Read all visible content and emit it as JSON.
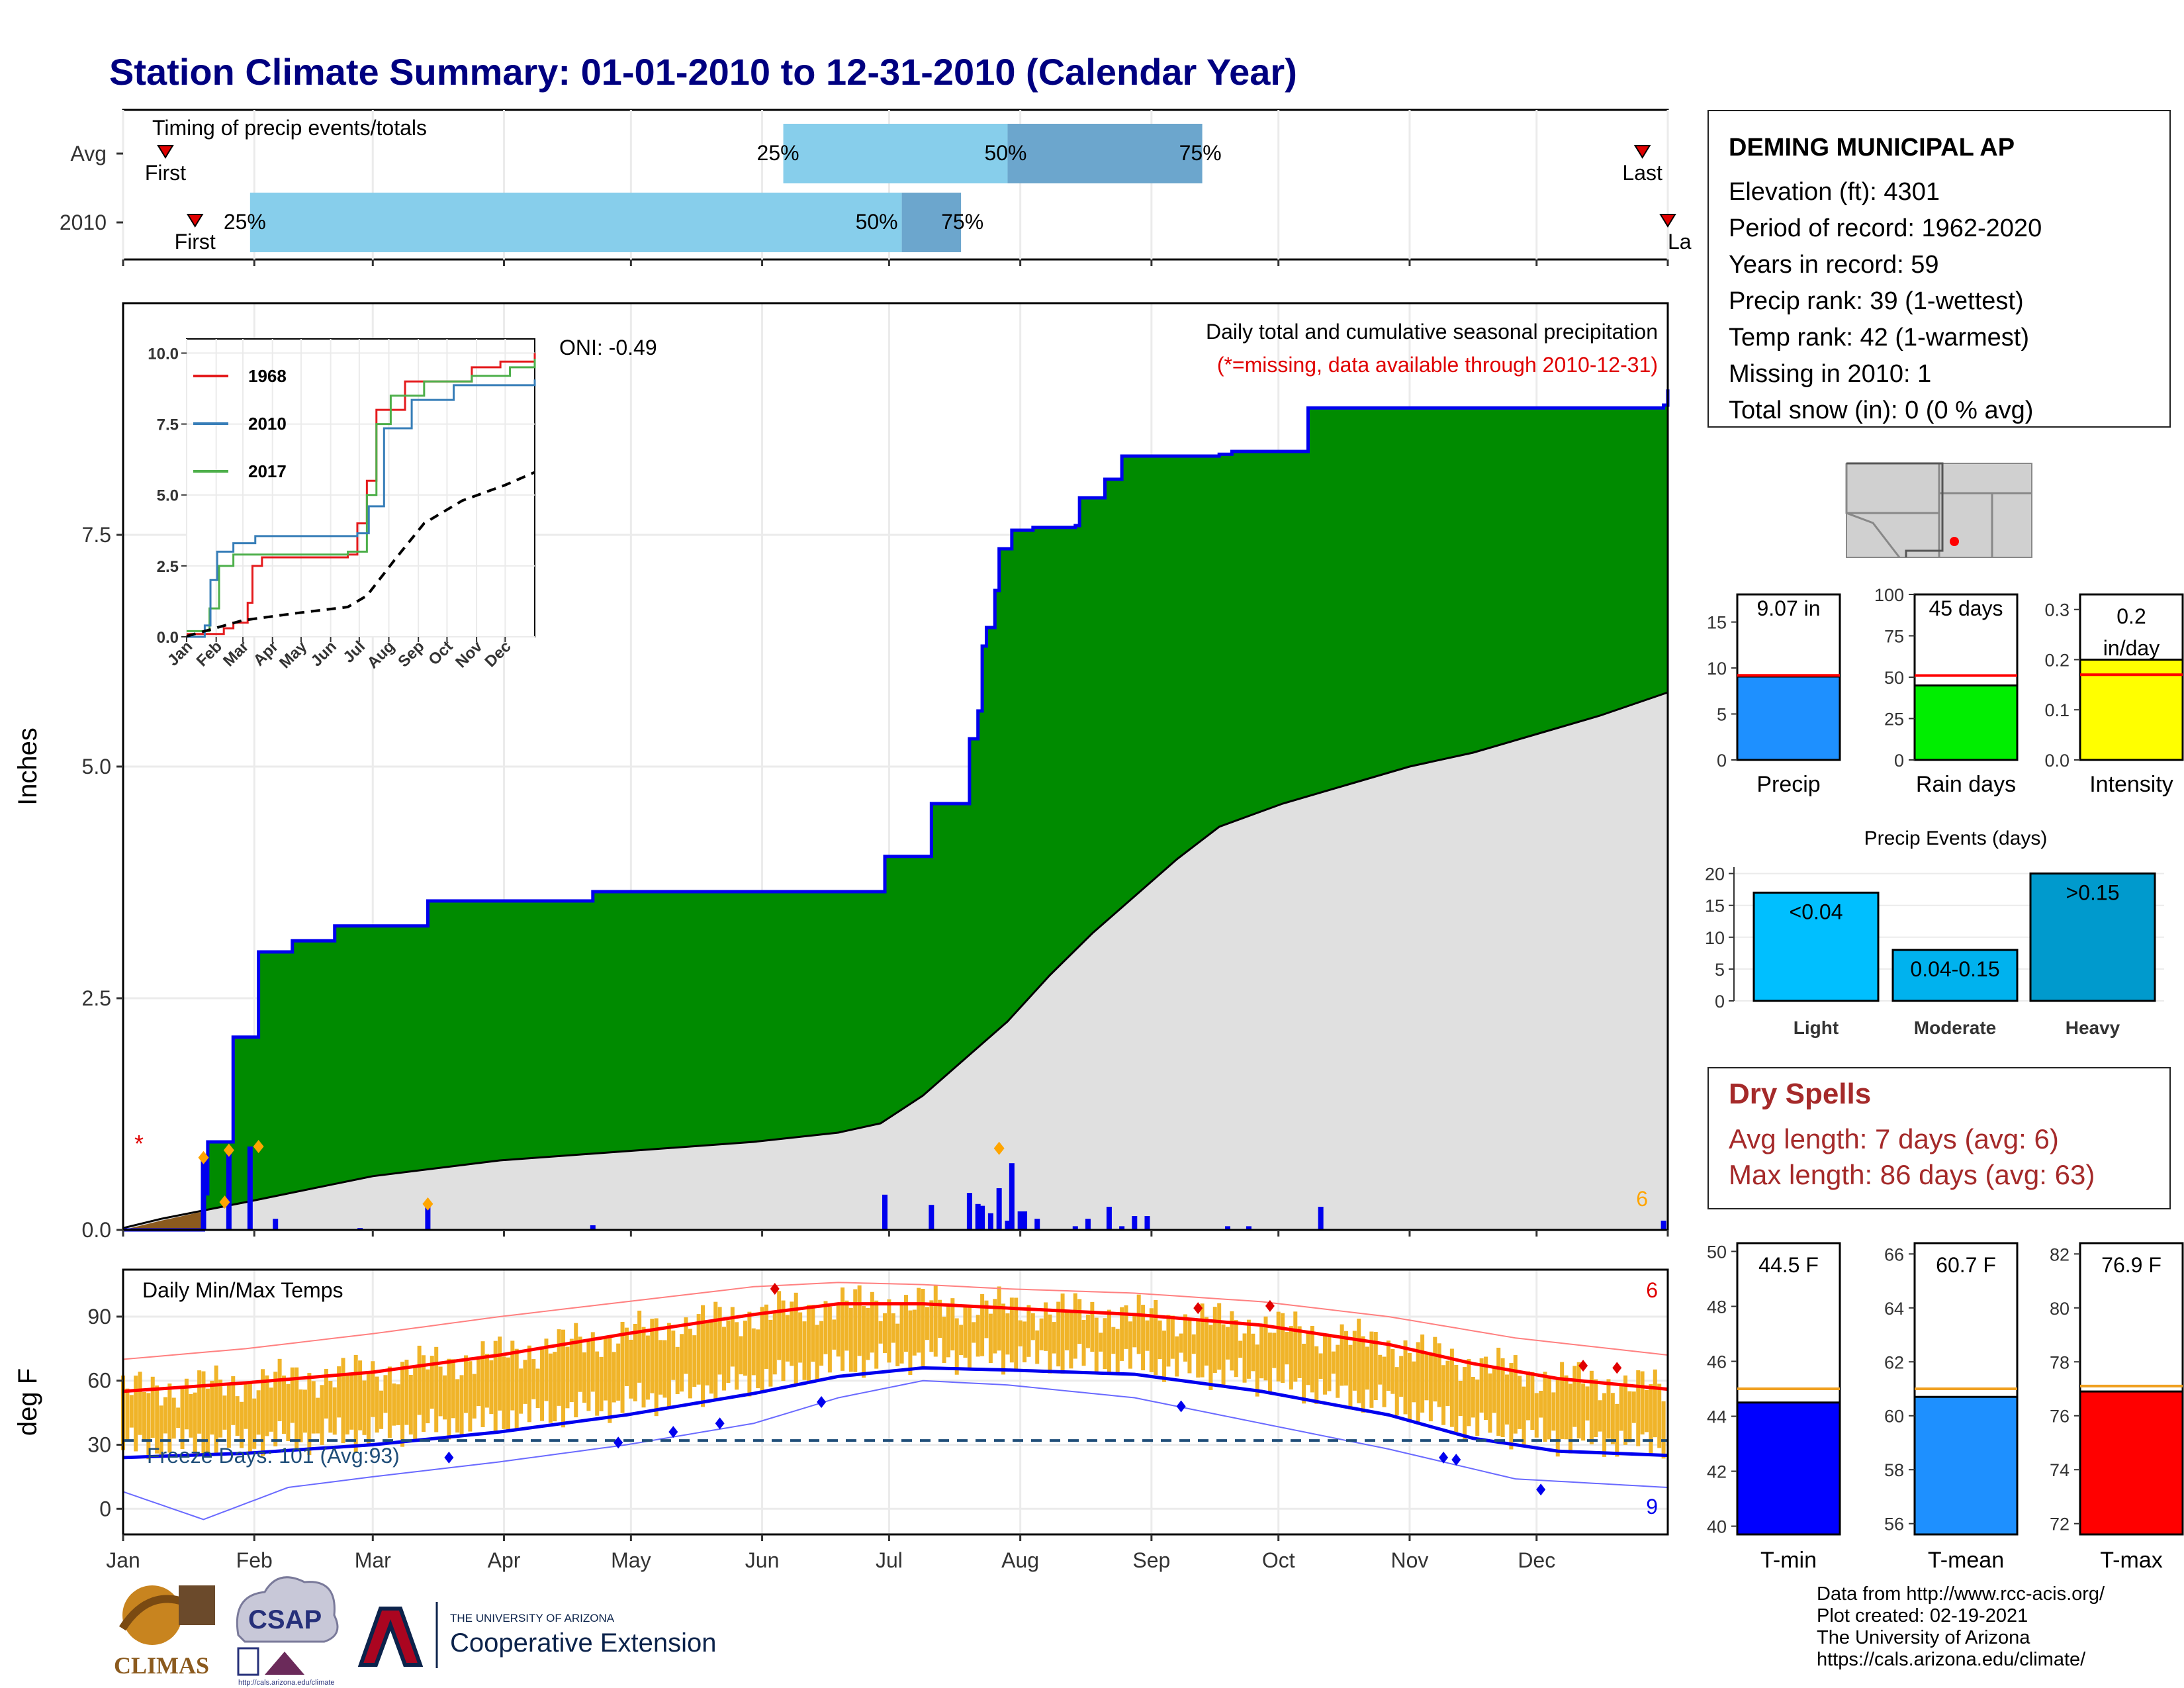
{
  "title": "Station Climate Summary: 01-01-2010 to 12-31-2010 (Calendar Year)",
  "months": [
    "Jan",
    "Feb",
    "Mar",
    "Apr",
    "May",
    "Jun",
    "Jul",
    "Aug",
    "Sep",
    "Oct",
    "Nov",
    "Dec"
  ],
  "timing": {
    "title": "Timing of precip events/totals",
    "rows": [
      {
        "label": "Avg",
        "first_day": 11,
        "last_day": 360,
        "q25_day": 157,
        "q50_day": 210,
        "q75_day": 256,
        "first_label": "First",
        "last_label": "Last"
      },
      {
        "label": "2010",
        "first_day": 18,
        "last_day": 366,
        "q25_day": 31,
        "q50_day": 185,
        "q75_day": 199,
        "first_label": "First",
        "last_label": "La"
      }
    ],
    "q25_label": "25%",
    "q50_label": "50%",
    "q75_label": "75%"
  },
  "precip": {
    "ylabel": "Inches",
    "yticks": [
      "0.0",
      "2.5",
      "5.0",
      "7.5"
    ],
    "title": "Daily total and cumulative seasonal precipitation",
    "subtitle": "(*=missing, data available through 2010-12-31)",
    "oni": "ONI: -0.49",
    "missing_marker": "*",
    "count_label": "6",
    "cumulative_2010": [
      [
        1,
        0
      ],
      [
        20,
        0.39
      ],
      [
        21,
        0.95
      ],
      [
        26,
        0.95
      ],
      [
        27,
        2.08
      ],
      [
        32,
        2.08
      ],
      [
        33,
        3.0
      ],
      [
        40,
        3.0
      ],
      [
        41,
        3.12
      ],
      [
        50,
        3.12
      ],
      [
        51,
        3.28
      ],
      [
        72,
        3.28
      ],
      [
        73,
        3.55
      ],
      [
        111,
        3.55
      ],
      [
        112,
        3.65
      ],
      [
        180,
        3.65
      ],
      [
        181,
        4.03
      ],
      [
        191,
        4.03
      ],
      [
        192,
        4.6
      ],
      [
        200,
        4.6
      ],
      [
        201,
        5.3
      ],
      [
        203,
        5.6
      ],
      [
        204,
        6.3
      ],
      [
        205,
        6.5
      ],
      [
        207,
        6.9
      ],
      [
        208,
        7.35
      ],
      [
        211,
        7.55
      ],
      [
        216,
        7.58
      ],
      [
        226,
        7.6
      ],
      [
        227,
        7.9
      ],
      [
        232,
        7.9
      ],
      [
        233,
        8.1
      ],
      [
        236,
        8.1
      ],
      [
        237,
        8.35
      ],
      [
        245,
        8.35
      ],
      [
        260,
        8.37
      ],
      [
        263,
        8.4
      ],
      [
        280,
        8.4
      ],
      [
        281,
        8.87
      ],
      [
        365,
        8.9
      ],
      [
        366,
        9.07
      ]
    ],
    "avg_cumulative": [
      [
        1,
        0.02
      ],
      [
        10,
        0.12
      ],
      [
        30,
        0.3
      ],
      [
        60,
        0.58
      ],
      [
        90,
        0.75
      ],
      [
        120,
        0.85
      ],
      [
        150,
        0.95
      ],
      [
        170,
        1.05
      ],
      [
        180,
        1.15
      ],
      [
        190,
        1.45
      ],
      [
        200,
        1.85
      ],
      [
        210,
        2.25
      ],
      [
        220,
        2.75
      ],
      [
        230,
        3.2
      ],
      [
        240,
        3.6
      ],
      [
        250,
        4.0
      ],
      [
        260,
        4.35
      ],
      [
        275,
        4.6
      ],
      [
        290,
        4.8
      ],
      [
        305,
        5.0
      ],
      [
        320,
        5.15
      ],
      [
        335,
        5.35
      ],
      [
        350,
        5.55
      ],
      [
        366,
        5.8
      ]
    ],
    "daily_bars": [
      [
        20,
        0.78
      ],
      [
        26,
        0.86
      ],
      [
        31,
        0.9
      ],
      [
        37,
        0.12
      ],
      [
        57,
        0.02
      ],
      [
        73,
        0.28
      ],
      [
        112,
        0.05
      ],
      [
        181,
        0.38
      ],
      [
        192,
        0.27
      ],
      [
        201,
        0.4
      ],
      [
        203,
        0.28
      ],
      [
        204,
        0.26
      ],
      [
        206,
        0.18
      ],
      [
        208,
        0.45
      ],
      [
        210,
        0.1
      ],
      [
        211,
        0.72
      ],
      [
        213,
        0.2
      ],
      [
        214,
        0.2
      ],
      [
        217,
        0.12
      ],
      [
        226,
        0.04
      ],
      [
        229,
        0.12
      ],
      [
        234,
        0.25
      ],
      [
        237,
        0.04
      ],
      [
        240,
        0.15
      ],
      [
        243,
        0.15
      ],
      [
        262,
        0.04
      ],
      [
        267,
        0.04
      ],
      [
        284,
        0.25
      ],
      [
        365,
        0.1
      ]
    ],
    "extreme_markers": [
      [
        20,
        0.78
      ],
      [
        25,
        0.3
      ],
      [
        26,
        0.86
      ],
      [
        33,
        0.9
      ],
      [
        73,
        0.28
      ],
      [
        208,
        0.88
      ]
    ],
    "ylim": [
      0,
      10
    ]
  },
  "inset": {
    "yticks": [
      "0.0",
      "2.5",
      "5.0",
      "7.5",
      "10.0"
    ],
    "legend": [
      {
        "name": "1968",
        "color": "#e41a1c"
      },
      {
        "name": "2010",
        "color": "#377eb8"
      },
      {
        "name": "2017",
        "color": "#4daf4a"
      }
    ],
    "series_1968": [
      [
        1,
        0.1
      ],
      [
        40,
        0.3
      ],
      [
        50,
        0.5
      ],
      [
        65,
        1.2
      ],
      [
        70,
        2.5
      ],
      [
        80,
        2.8
      ],
      [
        170,
        2.9
      ],
      [
        180,
        4.0
      ],
      [
        190,
        5.5
      ],
      [
        200,
        8.0
      ],
      [
        230,
        9.0
      ],
      [
        300,
        9.5
      ],
      [
        330,
        9.7
      ],
      [
        366,
        10.0
      ]
    ],
    "series_2010": [
      [
        1,
        0.0
      ],
      [
        20,
        0.4
      ],
      [
        26,
        2.0
      ],
      [
        33,
        3.0
      ],
      [
        50,
        3.3
      ],
      [
        73,
        3.55
      ],
      [
        180,
        3.65
      ],
      [
        192,
        4.6
      ],
      [
        208,
        7.35
      ],
      [
        237,
        8.35
      ],
      [
        281,
        8.87
      ],
      [
        366,
        9.07
      ]
    ],
    "series_2017": [
      [
        1,
        0.2
      ],
      [
        25,
        1.0
      ],
      [
        35,
        2.5
      ],
      [
        50,
        2.9
      ],
      [
        170,
        3.0
      ],
      [
        190,
        5.0
      ],
      [
        200,
        7.5
      ],
      [
        215,
        8.5
      ],
      [
        250,
        9.0
      ],
      [
        300,
        9.2
      ],
      [
        340,
        9.5
      ],
      [
        366,
        9.8
      ]
    ],
    "series_avg": [
      [
        1,
        0.02
      ],
      [
        60,
        0.58
      ],
      [
        120,
        0.85
      ],
      [
        170,
        1.05
      ],
      [
        190,
        1.45
      ],
      [
        220,
        2.75
      ],
      [
        250,
        4.0
      ],
      [
        290,
        4.8
      ],
      [
        335,
        5.35
      ],
      [
        366,
        5.8
      ]
    ]
  },
  "temps": {
    "ylabel": "deg F",
    "title": "Daily Min/Max Temps",
    "freeze_label": "Freeze Days: 101 (Avg:93)",
    "freeze_line": 32,
    "yticks": [
      "0",
      "30",
      "60",
      "90"
    ],
    "max_count_label": "6",
    "min_count_label": "9",
    "avg_max": [
      [
        1,
        55
      ],
      [
        30,
        59
      ],
      [
        60,
        64
      ],
      [
        90,
        72
      ],
      [
        120,
        82
      ],
      [
        150,
        91
      ],
      [
        170,
        96
      ],
      [
        190,
        96
      ],
      [
        210,
        94
      ],
      [
        240,
        91
      ],
      [
        270,
        86
      ],
      [
        300,
        77
      ],
      [
        320,
        68
      ],
      [
        340,
        61
      ],
      [
        366,
        56
      ]
    ],
    "avg_min": [
      [
        1,
        24
      ],
      [
        30,
        26
      ],
      [
        60,
        30
      ],
      [
        90,
        36
      ],
      [
        120,
        44
      ],
      [
        150,
        54
      ],
      [
        170,
        62
      ],
      [
        190,
        66
      ],
      [
        210,
        65
      ],
      [
        240,
        63
      ],
      [
        270,
        55
      ],
      [
        300,
        44
      ],
      [
        320,
        33
      ],
      [
        340,
        27
      ],
      [
        366,
        25
      ]
    ],
    "rec_max": [
      [
        1,
        70
      ],
      [
        30,
        75
      ],
      [
        60,
        82
      ],
      [
        90,
        90
      ],
      [
        120,
        97
      ],
      [
        150,
        104
      ],
      [
        170,
        106
      ],
      [
        190,
        105
      ],
      [
        210,
        103
      ],
      [
        240,
        101
      ],
      [
        270,
        97
      ],
      [
        300,
        90
      ],
      [
        330,
        80
      ],
      [
        366,
        72
      ]
    ],
    "rec_min": [
      [
        1,
        8
      ],
      [
        20,
        -5
      ],
      [
        40,
        10
      ],
      [
        60,
        15
      ],
      [
        90,
        22
      ],
      [
        120,
        30
      ],
      [
        150,
        40
      ],
      [
        170,
        52
      ],
      [
        190,
        60
      ],
      [
        210,
        58
      ],
      [
        240,
        52
      ],
      [
        270,
        40
      ],
      [
        300,
        28
      ],
      [
        330,
        14
      ],
      [
        366,
        10
      ]
    ],
    "hot_markers": [
      [
        155,
        103
      ],
      [
        255,
        94
      ],
      [
        272,
        95
      ],
      [
        346,
        67
      ],
      [
        354,
        66
      ]
    ],
    "cold_markers": [
      [
        78,
        24
      ],
      [
        118,
        31
      ],
      [
        131,
        36
      ],
      [
        142,
        40
      ],
      [
        166,
        50
      ],
      [
        251,
        48
      ],
      [
        313,
        24
      ],
      [
        316,
        23
      ],
      [
        336,
        9
      ]
    ],
    "ylim": [
      -12,
      112
    ]
  },
  "mini_precip": [
    {
      "label": "Precip",
      "value_label": "9.07 in",
      "value": 9.07,
      "avg": 9.2,
      "ymax": 18,
      "yticks": [
        "0",
        "5",
        "10",
        "15"
      ],
      "tick_vals": [
        0,
        5,
        10,
        15
      ],
      "color": "#1e90ff"
    },
    {
      "label": "Rain days",
      "value_label": "45 days",
      "value": 45,
      "avg": 51,
      "ymax": 100,
      "yticks": [
        "0",
        "25",
        "50",
        "75",
        "100"
      ],
      "tick_vals": [
        0,
        25,
        50,
        75,
        100
      ],
      "color": "#00ee00"
    },
    {
      "label": "Intensity",
      "value_label": "0.2 in/day",
      "value": 0.2,
      "avg": 0.17,
      "ymax": 0.33,
      "yticks": [
        "0.0",
        "0.1",
        "0.2",
        "0.3"
      ],
      "tick_vals": [
        0,
        0.1,
        0.2,
        0.3
      ],
      "color": "#ffff00"
    }
  ],
  "precip_events": {
    "title": "Precip Events (days)",
    "categories": [
      "Light",
      "Moderate",
      "Heavy"
    ],
    "values": [
      17,
      8,
      20
    ],
    "bar_labels": [
      "<0.04",
      "0.04-0.15",
      ">0.15"
    ],
    "colors": [
      "#00bfff",
      "#00b2ee",
      "#009acd"
    ],
    "yticks": [
      "0",
      "5",
      "10",
      "15",
      "20"
    ],
    "ylim": [
      0,
      21
    ]
  },
  "mini_temps": [
    {
      "label": "T-min",
      "value_label": "44.5 F",
      "value": 44.5,
      "avg": 45.0,
      "ymin": 39.7,
      "ymax": 50.3,
      "yticks": [
        "40",
        "42",
        "44",
        "46",
        "48",
        "50"
      ],
      "tick_vals": [
        40,
        42,
        44,
        46,
        48,
        50
      ],
      "color": "#0000ff"
    },
    {
      "label": "T-mean",
      "value_label": "60.7 F",
      "value": 60.7,
      "avg": 61.0,
      "ymin": 55.6,
      "ymax": 66.4,
      "yticks": [
        "56",
        "58",
        "60",
        "62",
        "64",
        "66"
      ],
      "tick_vals": [
        56,
        58,
        60,
        62,
        64,
        66
      ],
      "color": "#1e90ff"
    },
    {
      "label": "T-max",
      "value_label": "76.9 F",
      "value": 76.9,
      "avg": 77.1,
      "ymin": 71.6,
      "ymax": 82.4,
      "yticks": [
        "72",
        "74",
        "76",
        "78",
        "80",
        "82"
      ],
      "tick_vals": [
        72,
        74,
        76,
        78,
        80,
        82
      ],
      "color": "#ff0000"
    }
  ],
  "station": {
    "name": "DEMING MUNICIPAL AP",
    "elevation": "Elevation (ft): 4301",
    "period": "Period of record: 1962-2020",
    "years": "Years in record: 59",
    "precip_rank": "Precip rank: 39 (1-wettest)",
    "temp_rank": "Temp rank: 42 (1-warmest)",
    "missing": "Missing in 2010: 1",
    "snow": "Total snow (in): 0 (0 % avg)"
  },
  "dry_spells": {
    "title": "Dry Spells",
    "avg": "Avg length: 7 days (avg: 6)",
    "max": "Max length: 86 days (avg: 63)"
  },
  "credits": {
    "line1": "Data from http://www.rcc-acis.org/",
    "line2": "Plot created: 02-19-2021",
    "line3": "The University of Arizona",
    "line4": "https://cals.arizona.edu/climate/"
  },
  "logos": {
    "climas": "CLIMAS",
    "csap": "CSAP",
    "csap_url": "http://cals.arizona.edu/climate",
    "ua_top": "THE UNIVERSITY OF ARIZONA",
    "ua_main": "Cooperative Extension"
  },
  "colors": {
    "title": "#000080",
    "cum_fill": "#008b00",
    "cum_line": "#0000ee",
    "avg_fill": "#e0e0e0",
    "temp_bar": "#f0b429",
    "marker": "#ffa500"
  }
}
